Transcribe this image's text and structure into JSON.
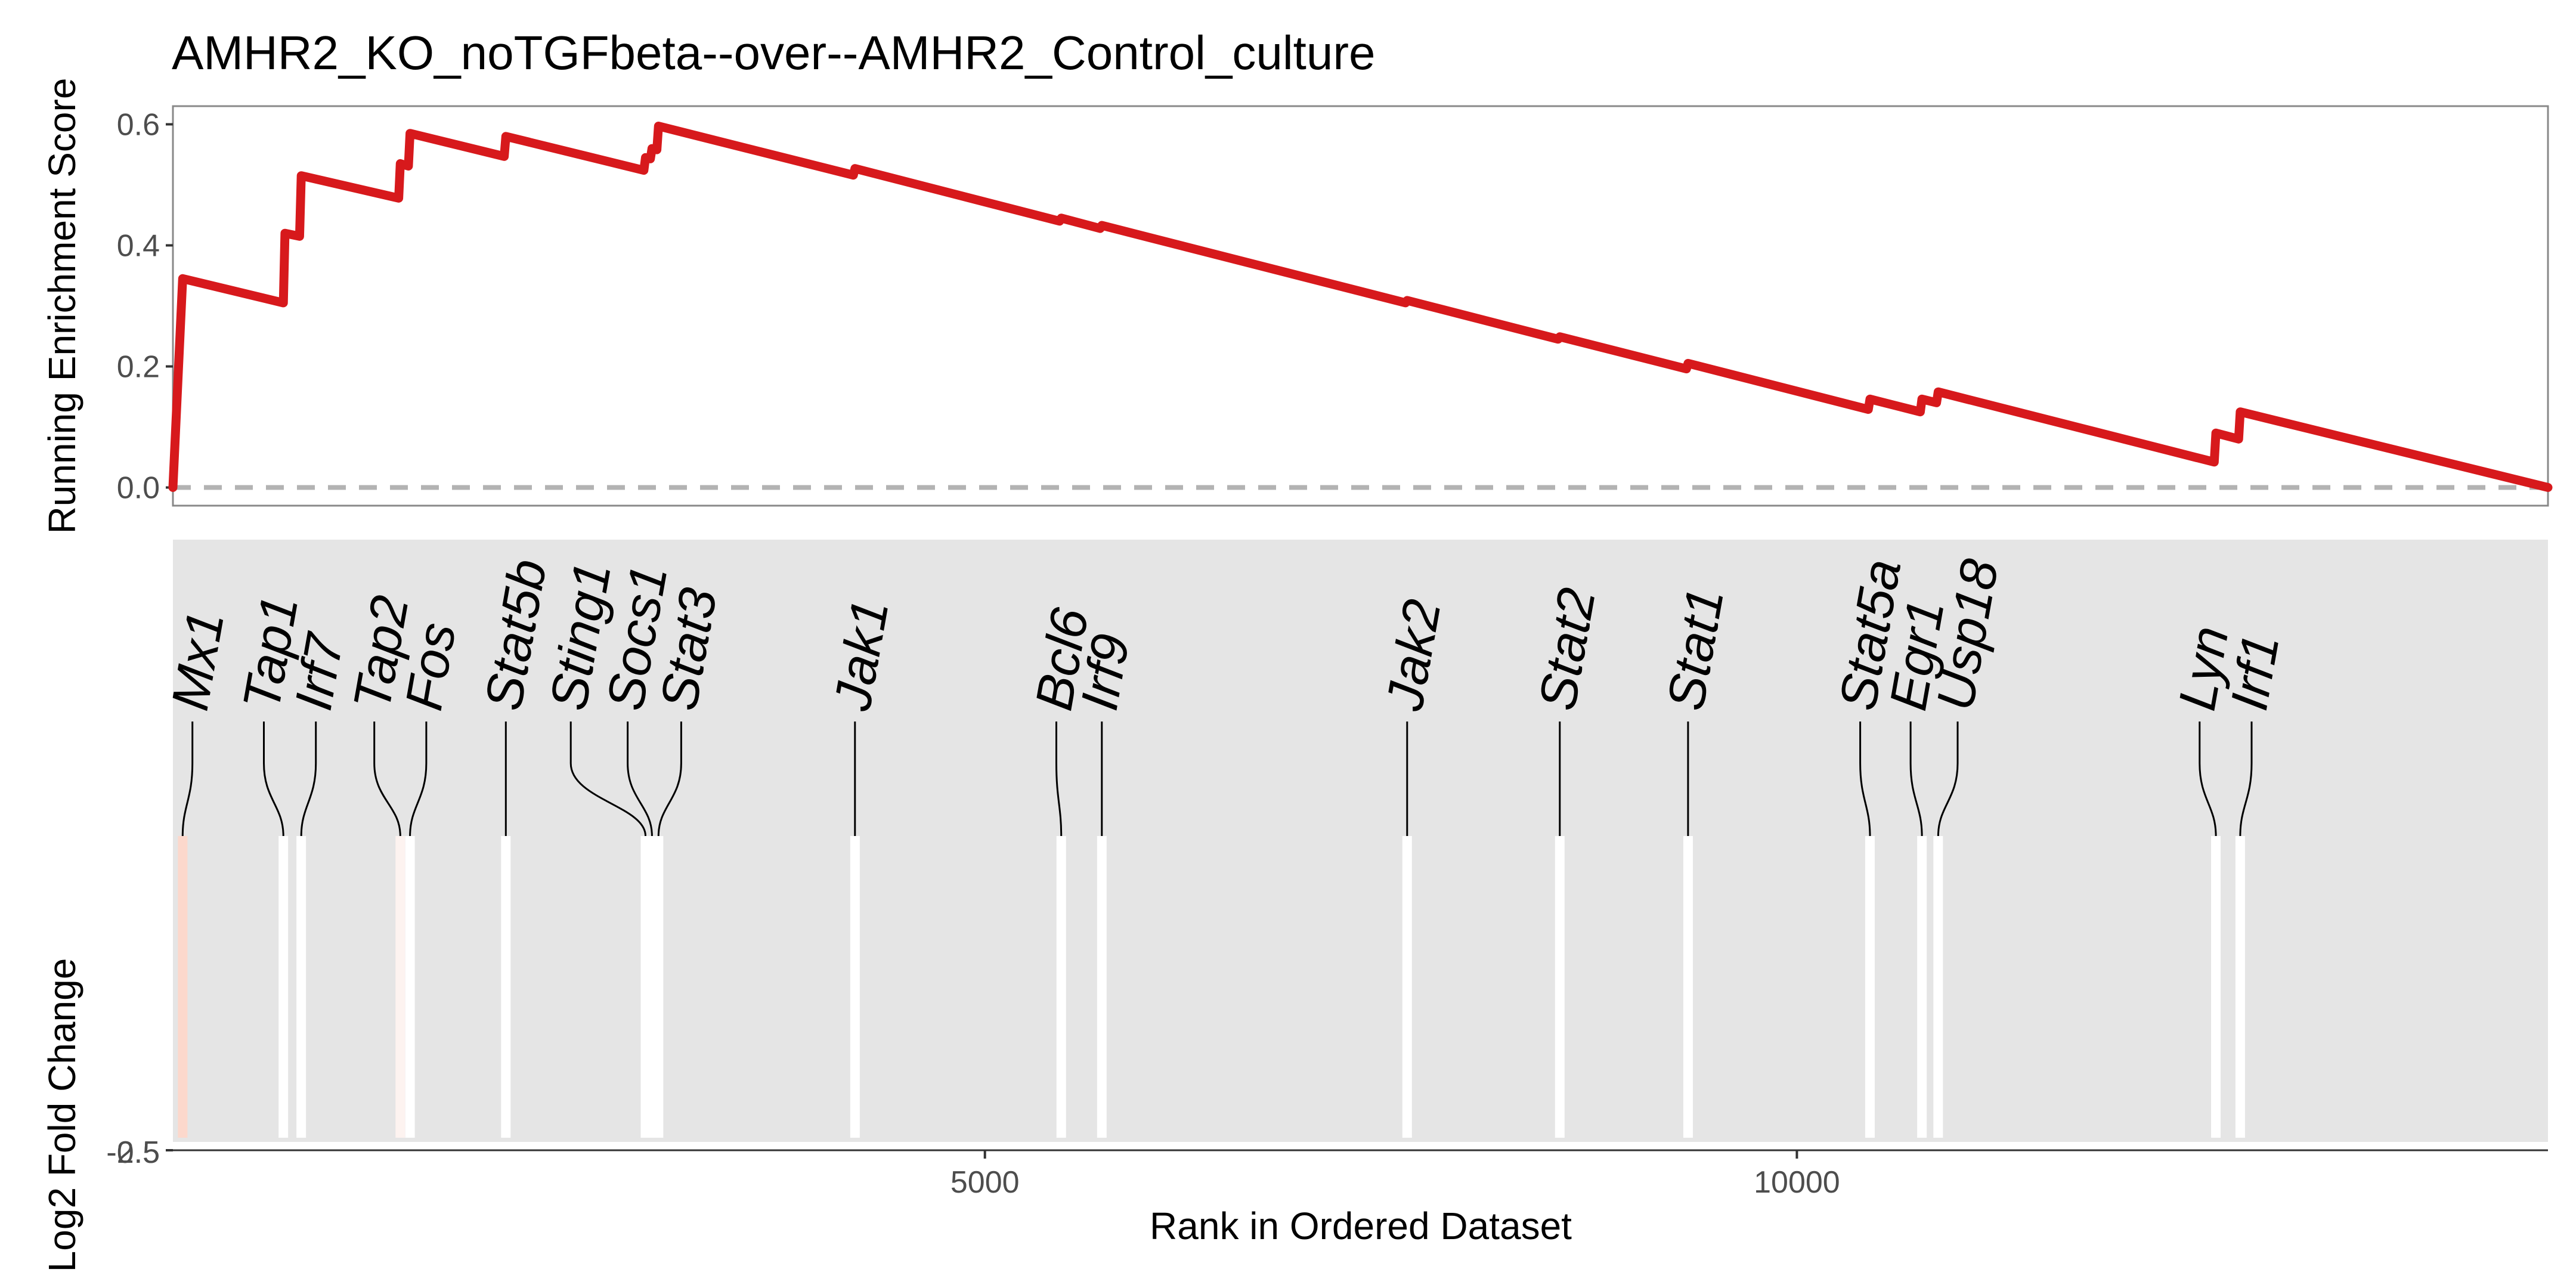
{
  "title": "AMHR2_KO_noTGFbeta--over--AMHR2_Control_culture",
  "chart_data": [
    {
      "type": "line",
      "name": "running-enrichment",
      "ylabel": "Running Enrichment Score",
      "ylim": [
        -0.03,
        0.63
      ],
      "yticks": [
        0.0,
        0.2,
        0.4,
        0.6
      ],
      "ytick_labels": [
        "0.0",
        "0.2",
        "0.4",
        "0.6"
      ],
      "xlim": [
        0,
        14625
      ],
      "color": "#d7191c",
      "zero_line_color": "#b3b3b3",
      "panel_border": "#888888",
      "points": [
        [
          0,
          0.0
        ],
        [
          0,
          0.0
        ],
        [
          60,
          0.345
        ],
        [
          680,
          0.305
        ],
        [
          690,
          0.42
        ],
        [
          780,
          0.415
        ],
        [
          790,
          0.515
        ],
        [
          1390,
          0.478
        ],
        [
          1400,
          0.535
        ],
        [
          1450,
          0.531
        ],
        [
          1460,
          0.585
        ],
        [
          2040,
          0.547
        ],
        [
          2050,
          0.58
        ],
        [
          2900,
          0.524
        ],
        [
          2910,
          0.545
        ],
        [
          2940,
          0.543
        ],
        [
          2950,
          0.56
        ],
        [
          2980,
          0.558
        ],
        [
          2990,
          0.597
        ],
        [
          4190,
          0.516
        ],
        [
          4200,
          0.527
        ],
        [
          5460,
          0.44
        ],
        [
          5470,
          0.445
        ],
        [
          5710,
          0.428
        ],
        [
          5720,
          0.433
        ],
        [
          7590,
          0.305
        ],
        [
          7600,
          0.309
        ],
        [
          8530,
          0.245
        ],
        [
          8540,
          0.249
        ],
        [
          9320,
          0.196
        ],
        [
          9330,
          0.205
        ],
        [
          10440,
          0.129
        ],
        [
          10450,
          0.146
        ],
        [
          10760,
          0.125
        ],
        [
          10770,
          0.146
        ],
        [
          10860,
          0.14
        ],
        [
          10870,
          0.158
        ],
        [
          12570,
          0.042
        ],
        [
          12580,
          0.09
        ],
        [
          12720,
          0.08
        ],
        [
          12730,
          0.125
        ],
        [
          14625,
          0.0
        ]
      ]
    },
    {
      "type": "bar",
      "name": "gene-hits",
      "ylabel": "Log2 Fold Change",
      "ytick_labels": [
        "-0.5",
        "-2.5"
      ],
      "xlabel": "Rank in Ordered Dataset",
      "xticks": [
        5000,
        10000
      ],
      "xtick_labels": [
        "5000",
        "10000"
      ],
      "xlim": [
        0,
        14625
      ],
      "panel_bg": "#e5e5e5",
      "genes": [
        {
          "gene": "Mx1",
          "rank": 60,
          "label_rank": 120,
          "color": "#fcd8cc"
        },
        {
          "gene": "Tap1",
          "rank": 680,
          "label_rank": 560,
          "color": "#ffffff"
        },
        {
          "gene": "Irf7",
          "rank": 790,
          "label_rank": 880,
          "color": "#ffffff"
        },
        {
          "gene": "Tap2",
          "rank": 1400,
          "label_rank": 1240,
          "color": "#fdf3f0"
        },
        {
          "gene": "Fos",
          "rank": 1460,
          "label_rank": 1560,
          "color": "#ffffff"
        },
        {
          "gene": "Stat5b",
          "rank": 2050,
          "label_rank": 2050,
          "color": "#ffffff"
        },
        {
          "gene": "Sting1",
          "rank": 2910,
          "label_rank": 2450,
          "color": "#ffffff"
        },
        {
          "gene": "Socs1",
          "rank": 2950,
          "label_rank": 2800,
          "color": "#ffffff"
        },
        {
          "gene": "Stat3",
          "rank": 2990,
          "label_rank": 3130,
          "color": "#ffffff"
        },
        {
          "gene": "Jak1",
          "rank": 4200,
          "label_rank": 4200,
          "color": "#ffffff"
        },
        {
          "gene": "Bcl6",
          "rank": 5470,
          "label_rank": 5440,
          "color": "#ffffff"
        },
        {
          "gene": "Irf9",
          "rank": 5720,
          "label_rank": 5720,
          "color": "#ffffff"
        },
        {
          "gene": "Jak2",
          "rank": 7600,
          "label_rank": 7600,
          "color": "#ffffff"
        },
        {
          "gene": "Stat2",
          "rank": 8540,
          "label_rank": 8540,
          "color": "#ffffff"
        },
        {
          "gene": "Stat1",
          "rank": 9330,
          "label_rank": 9330,
          "color": "#ffffff"
        },
        {
          "gene": "Stat5a",
          "rank": 10450,
          "label_rank": 10390,
          "color": "#ffffff"
        },
        {
          "gene": "Egr1",
          "rank": 10770,
          "label_rank": 10700,
          "color": "#ffffff"
        },
        {
          "gene": "Usp18",
          "rank": 10870,
          "label_rank": 10990,
          "color": "#ffffff"
        },
        {
          "gene": "Lyn",
          "rank": 12580,
          "label_rank": 12480,
          "color": "#ffffff"
        },
        {
          "gene": "Irf1",
          "rank": 12730,
          "label_rank": 12800,
          "color": "#ffffff"
        }
      ]
    }
  ]
}
